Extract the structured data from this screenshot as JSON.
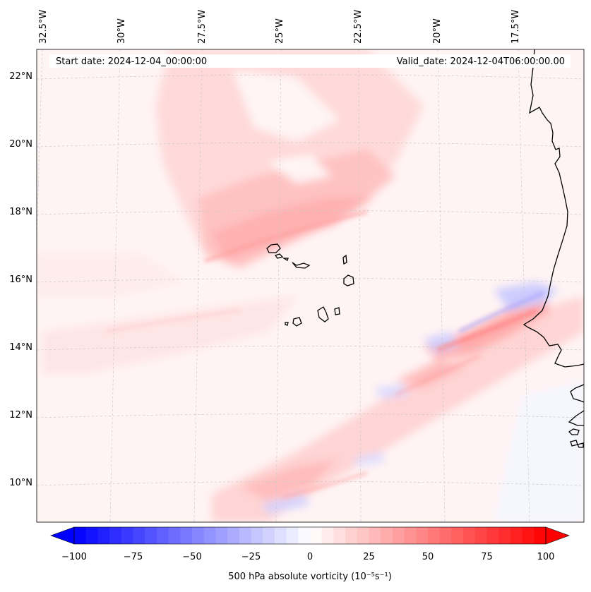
{
  "header": {
    "start_date": "Start date: 2024-12-04_00:00:00",
    "valid_date": "Valid_date: 2024-12-04T06:00:00.00"
  },
  "map": {
    "lon_labels": [
      "32.5°W",
      "30°W",
      "27.5°W",
      "25°W",
      "22.5°W",
      "20°W",
      "17.5°W"
    ],
    "lat_labels": [
      "22°N",
      "20°N",
      "18°N",
      "16°N",
      "14°N",
      "12°N",
      "10°N"
    ],
    "grid": true,
    "field": "500 hPa absolute vorticity"
  },
  "colorbar": {
    "ticks": [
      "−100",
      "−75",
      "−50",
      "−25",
      "0",
      "25",
      "50",
      "75",
      "100"
    ],
    "label": "500 hPa absolute vorticity (10⁻⁵s⁻¹)",
    "min": -100,
    "max": 100,
    "levels": 40,
    "color_negative": "#0000ff",
    "color_zero": "#ffffff",
    "color_positive": "#ff0000"
  }
}
